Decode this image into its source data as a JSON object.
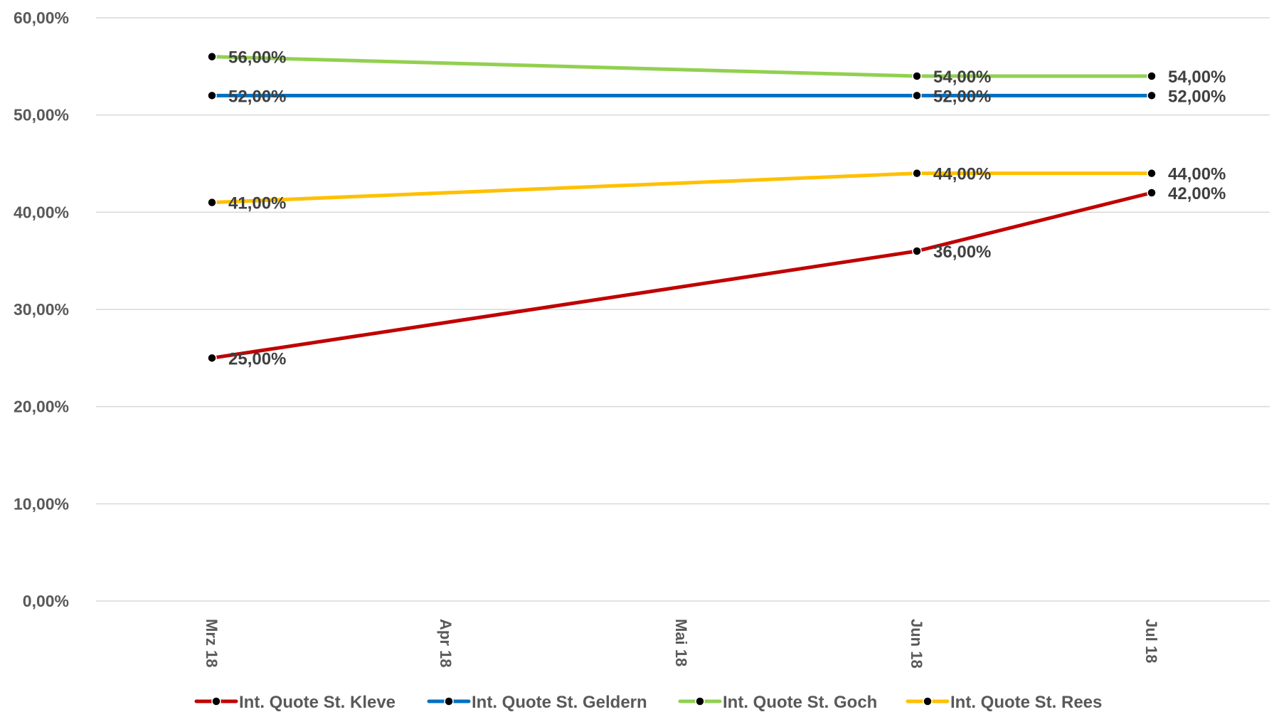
{
  "chart_data": {
    "type": "line",
    "categories": [
      "Mrz 18",
      "Apr 18",
      "Mai 18",
      "Jun 18",
      "Jul 18"
    ],
    "ylim": [
      0,
      60
    ],
    "yticks": [
      {
        "value": 0,
        "label": "0,00%"
      },
      {
        "value": 10,
        "label": "10,00%"
      },
      {
        "value": 20,
        "label": "20,00%"
      },
      {
        "value": 30,
        "label": "30,00%"
      },
      {
        "value": 40,
        "label": "40,00%"
      },
      {
        "value": 50,
        "label": "50,00%"
      },
      {
        "value": 60,
        "label": "60,00%"
      }
    ],
    "grid": true,
    "legend_position": "bottom",
    "series": [
      {
        "name": "Int. Quote St. Kleve",
        "color": "#C00000",
        "points": [
          {
            "x": "Mrz 18",
            "y": 25,
            "label": "25,00%"
          },
          {
            "x": "Jun 18",
            "y": 36,
            "label": "36,00%"
          },
          {
            "x": "Jul 18",
            "y": 42,
            "label": "42,00%"
          }
        ]
      },
      {
        "name": "Int. Quote St. Geldern",
        "color": "#0070C0",
        "points": [
          {
            "x": "Mrz 18",
            "y": 52,
            "label": "52,00%"
          },
          {
            "x": "Jun 18",
            "y": 52,
            "label": "52,00%"
          },
          {
            "x": "Jul 18",
            "y": 52,
            "label": "52,00%"
          }
        ]
      },
      {
        "name": "Int. Quote St. Goch",
        "color": "#92D050",
        "points": [
          {
            "x": "Mrz 18",
            "y": 56,
            "label": "56,00%"
          },
          {
            "x": "Jun 18",
            "y": 54,
            "label": "54,00%"
          },
          {
            "x": "Jul 18",
            "y": 54,
            "label": "54,00%"
          }
        ]
      },
      {
        "name": "Int. Quote St. Rees",
        "color": "#FFC000",
        "points": [
          {
            "x": "Mrz 18",
            "y": 41,
            "label": "41,00%"
          },
          {
            "x": "Jun 18",
            "y": 44,
            "label": "44,00%"
          },
          {
            "x": "Jul 18",
            "y": 44,
            "label": "44,00%"
          }
        ]
      }
    ]
  }
}
